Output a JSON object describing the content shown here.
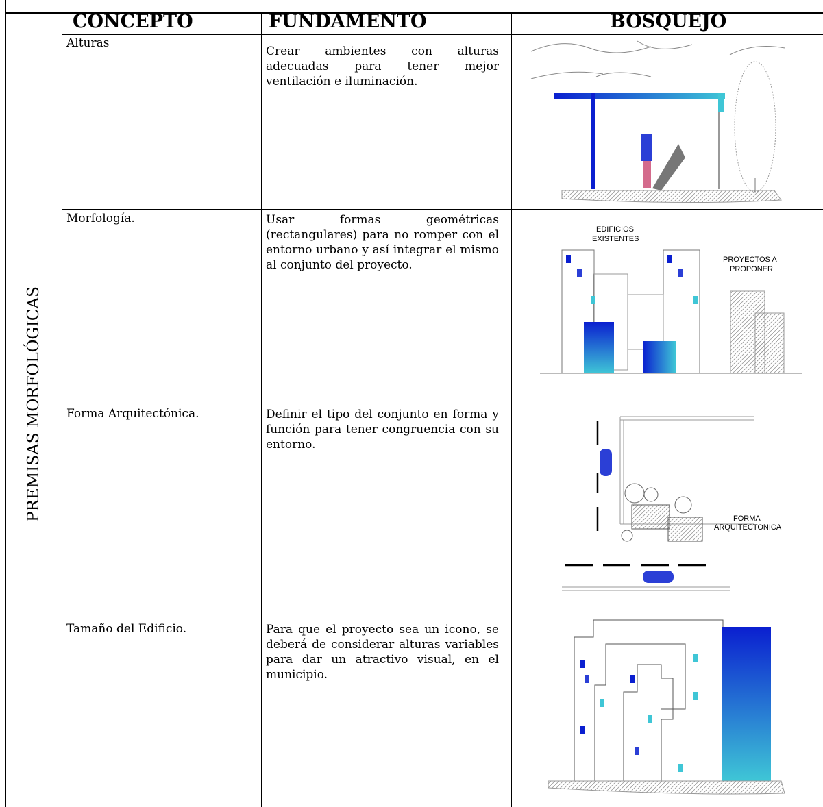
{
  "table": {
    "side_label": "PREMISAS MORFOLÓGICAS",
    "header": [
      "CONCEPTO",
      "FUNDAMENTO",
      "BOSQUEJO"
    ],
    "rows": [
      {
        "concepto": "Alturas",
        "fundamento": "Crear ambientes con alturas adecuadas para tener mejor ventilación e iluminación."
      },
      {
        "concepto": "Morfología.",
        "fundamento": "Usar formas geométricas (rectangulares) para no romper con el entorno urbano y así integrar el mismo al conjunto del proyecto."
      },
      {
        "concepto": "Forma Arquitectónica.",
        "fundamento": "Definir el tipo del conjunto en forma y función para tener congruencia con su entorno."
      },
      {
        "concepto": "Tamaño del Edificio.",
        "fundamento": "Para que el proyecto sea un icono, se deberá de considerar alturas variables para dar un atractivo visual, en el municipio."
      }
    ]
  },
  "sketches": {
    "existing_buildings": [
      "EDIFICIOS",
      "EXISTENTES"
    ],
    "proposed_projects": [
      "PROYECTOS A",
      "PROPONER"
    ],
    "architectural_form": [
      "FORMA",
      "ARQUITECTONICA"
    ]
  }
}
